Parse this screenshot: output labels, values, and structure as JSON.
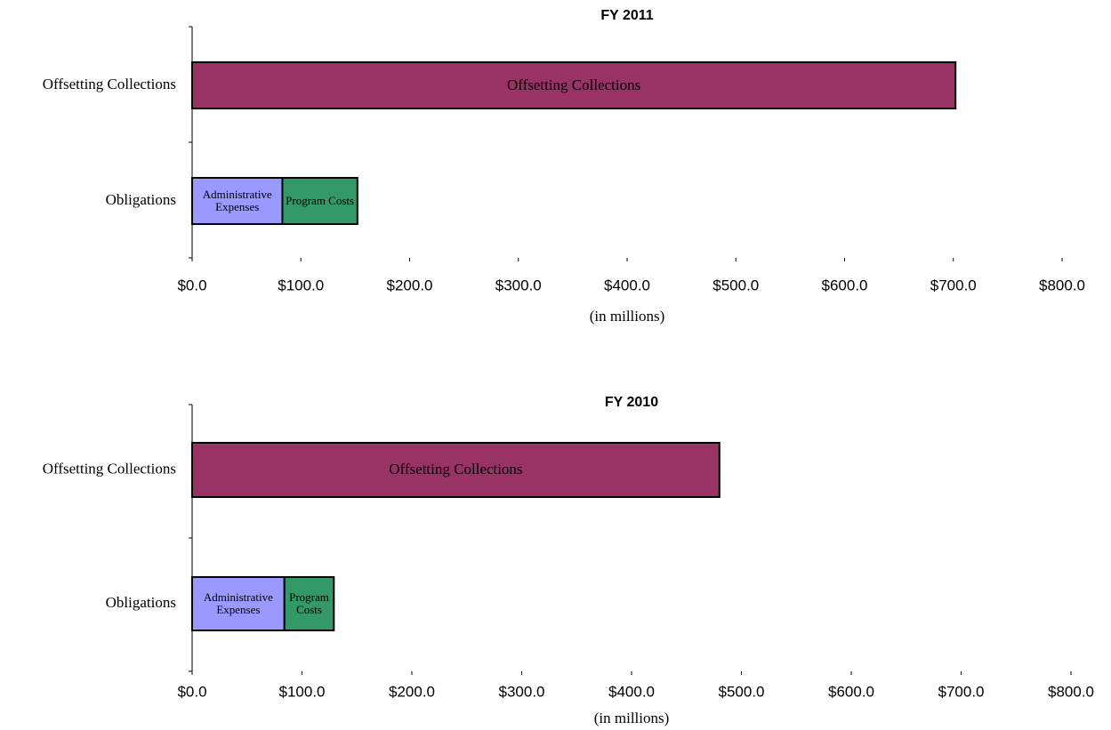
{
  "chart_data": [
    {
      "type": "bar",
      "orientation": "horizontal",
      "stacked": true,
      "title": "FY 2011",
      "x_label": "(in millions)",
      "categories": [
        "Offsetting Collections",
        "Obligations"
      ],
      "series": [
        {
          "name": "Offsetting Collections",
          "color": "#993366",
          "values": [
            702,
            null
          ]
        },
        {
          "name": "Administrative Expenses",
          "color": "#9999ff",
          "values": [
            null,
            83
          ]
        },
        {
          "name": "Program Costs",
          "color": "#339966",
          "values": [
            null,
            69
          ]
        }
      ],
      "xlim": [
        0,
        800
      ],
      "xticks": [
        {
          "value": 0,
          "label": "$0.0"
        },
        {
          "value": 100,
          "label": "$100.0"
        },
        {
          "value": 200,
          "label": "$200.0"
        },
        {
          "value": 300,
          "label": "$300.0"
        },
        {
          "value": 400,
          "label": "$400.0"
        },
        {
          "value": 500,
          "label": "$500.0"
        },
        {
          "value": 600,
          "label": "$600.0"
        },
        {
          "value": 700,
          "label": "$700.0"
        },
        {
          "value": 800,
          "label": "$800.0"
        }
      ]
    },
    {
      "type": "bar",
      "orientation": "horizontal",
      "stacked": true,
      "title": "FY 2010",
      "x_label": "(in millions)",
      "categories": [
        "Offsetting Collections",
        "Obligations"
      ],
      "series": [
        {
          "name": "Offsetting Collections",
          "color": "#993366",
          "values": [
            480,
            null
          ]
        },
        {
          "name": "Administrative Expenses",
          "color": "#9999ff",
          "values": [
            null,
            84
          ]
        },
        {
          "name": "Program Costs",
          "color": "#339966",
          "values": [
            null,
            45
          ]
        }
      ],
      "xlim": [
        0,
        800
      ],
      "xticks": [
        {
          "value": 0,
          "label": "$0.0"
        },
        {
          "value": 100,
          "label": "$100.0"
        },
        {
          "value": 200,
          "label": "$200.0"
        },
        {
          "value": 300,
          "label": "$300.0"
        },
        {
          "value": 400,
          "label": "$400.0"
        },
        {
          "value": 500,
          "label": "$500.0"
        },
        {
          "value": 600,
          "label": "$600.0"
        },
        {
          "value": 700,
          "label": "$700.0"
        },
        {
          "value": 800,
          "label": "$800.0"
        }
      ]
    }
  ]
}
